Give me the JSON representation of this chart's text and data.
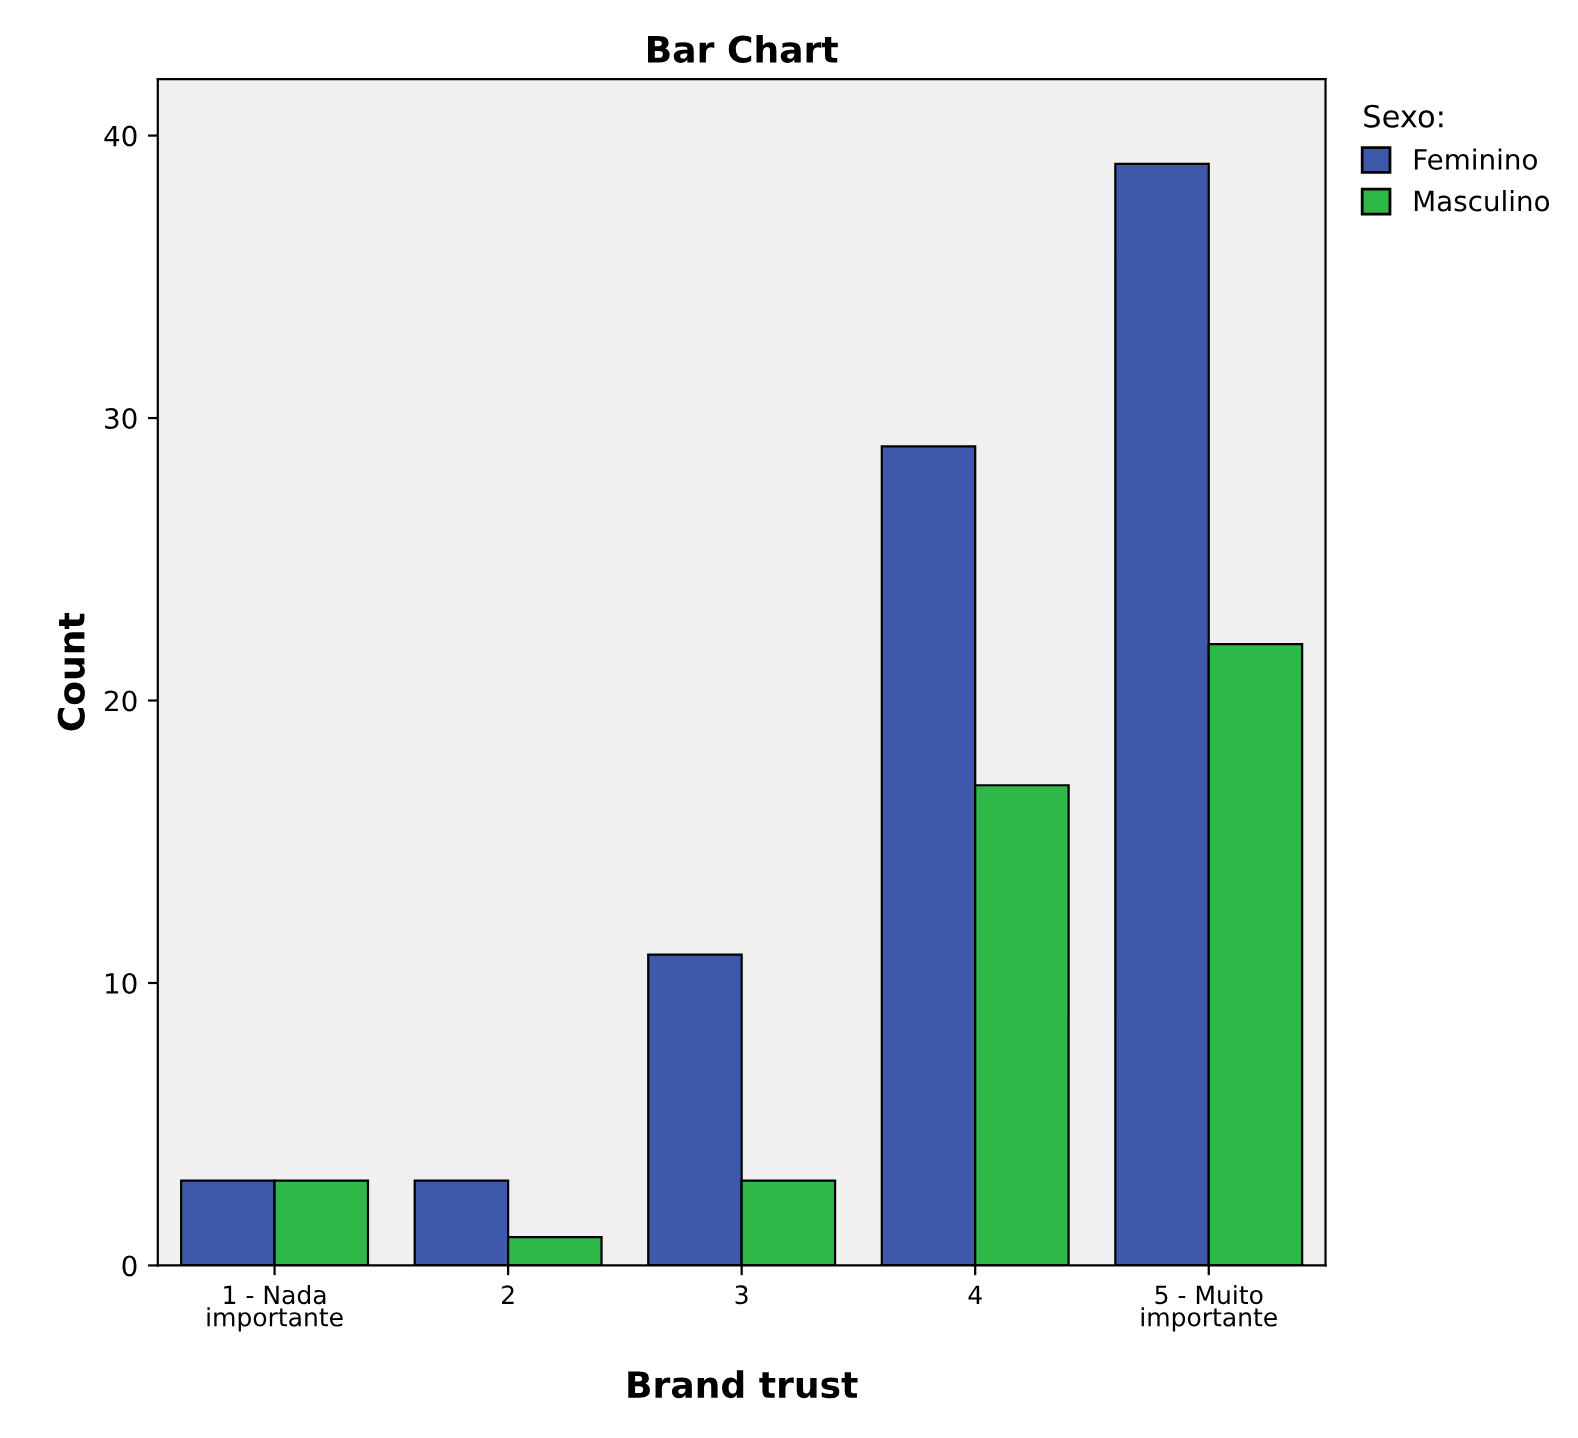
{
  "chart_data": {
    "type": "bar",
    "title": "Bar Chart",
    "xlabel": "Brand trust",
    "ylabel": "Count",
    "legend_title": "Sexo:",
    "categories": [
      "1 - Nada\nimportante",
      "2",
      "3",
      "4",
      "5 - Muito\nimportante"
    ],
    "series": [
      {
        "name": "Feminino",
        "color": "#3e58ac",
        "values": [
          3,
          3,
          11,
          29,
          39
        ]
      },
      {
        "name": "Masculino",
        "color": "#2eb848",
        "values": [
          3,
          1,
          3,
          17,
          22
        ]
      }
    ],
    "ylim": [
      0,
      42
    ],
    "yticks": [
      0,
      10,
      20,
      30,
      40
    ],
    "grid": false,
    "legend": "top right"
  }
}
